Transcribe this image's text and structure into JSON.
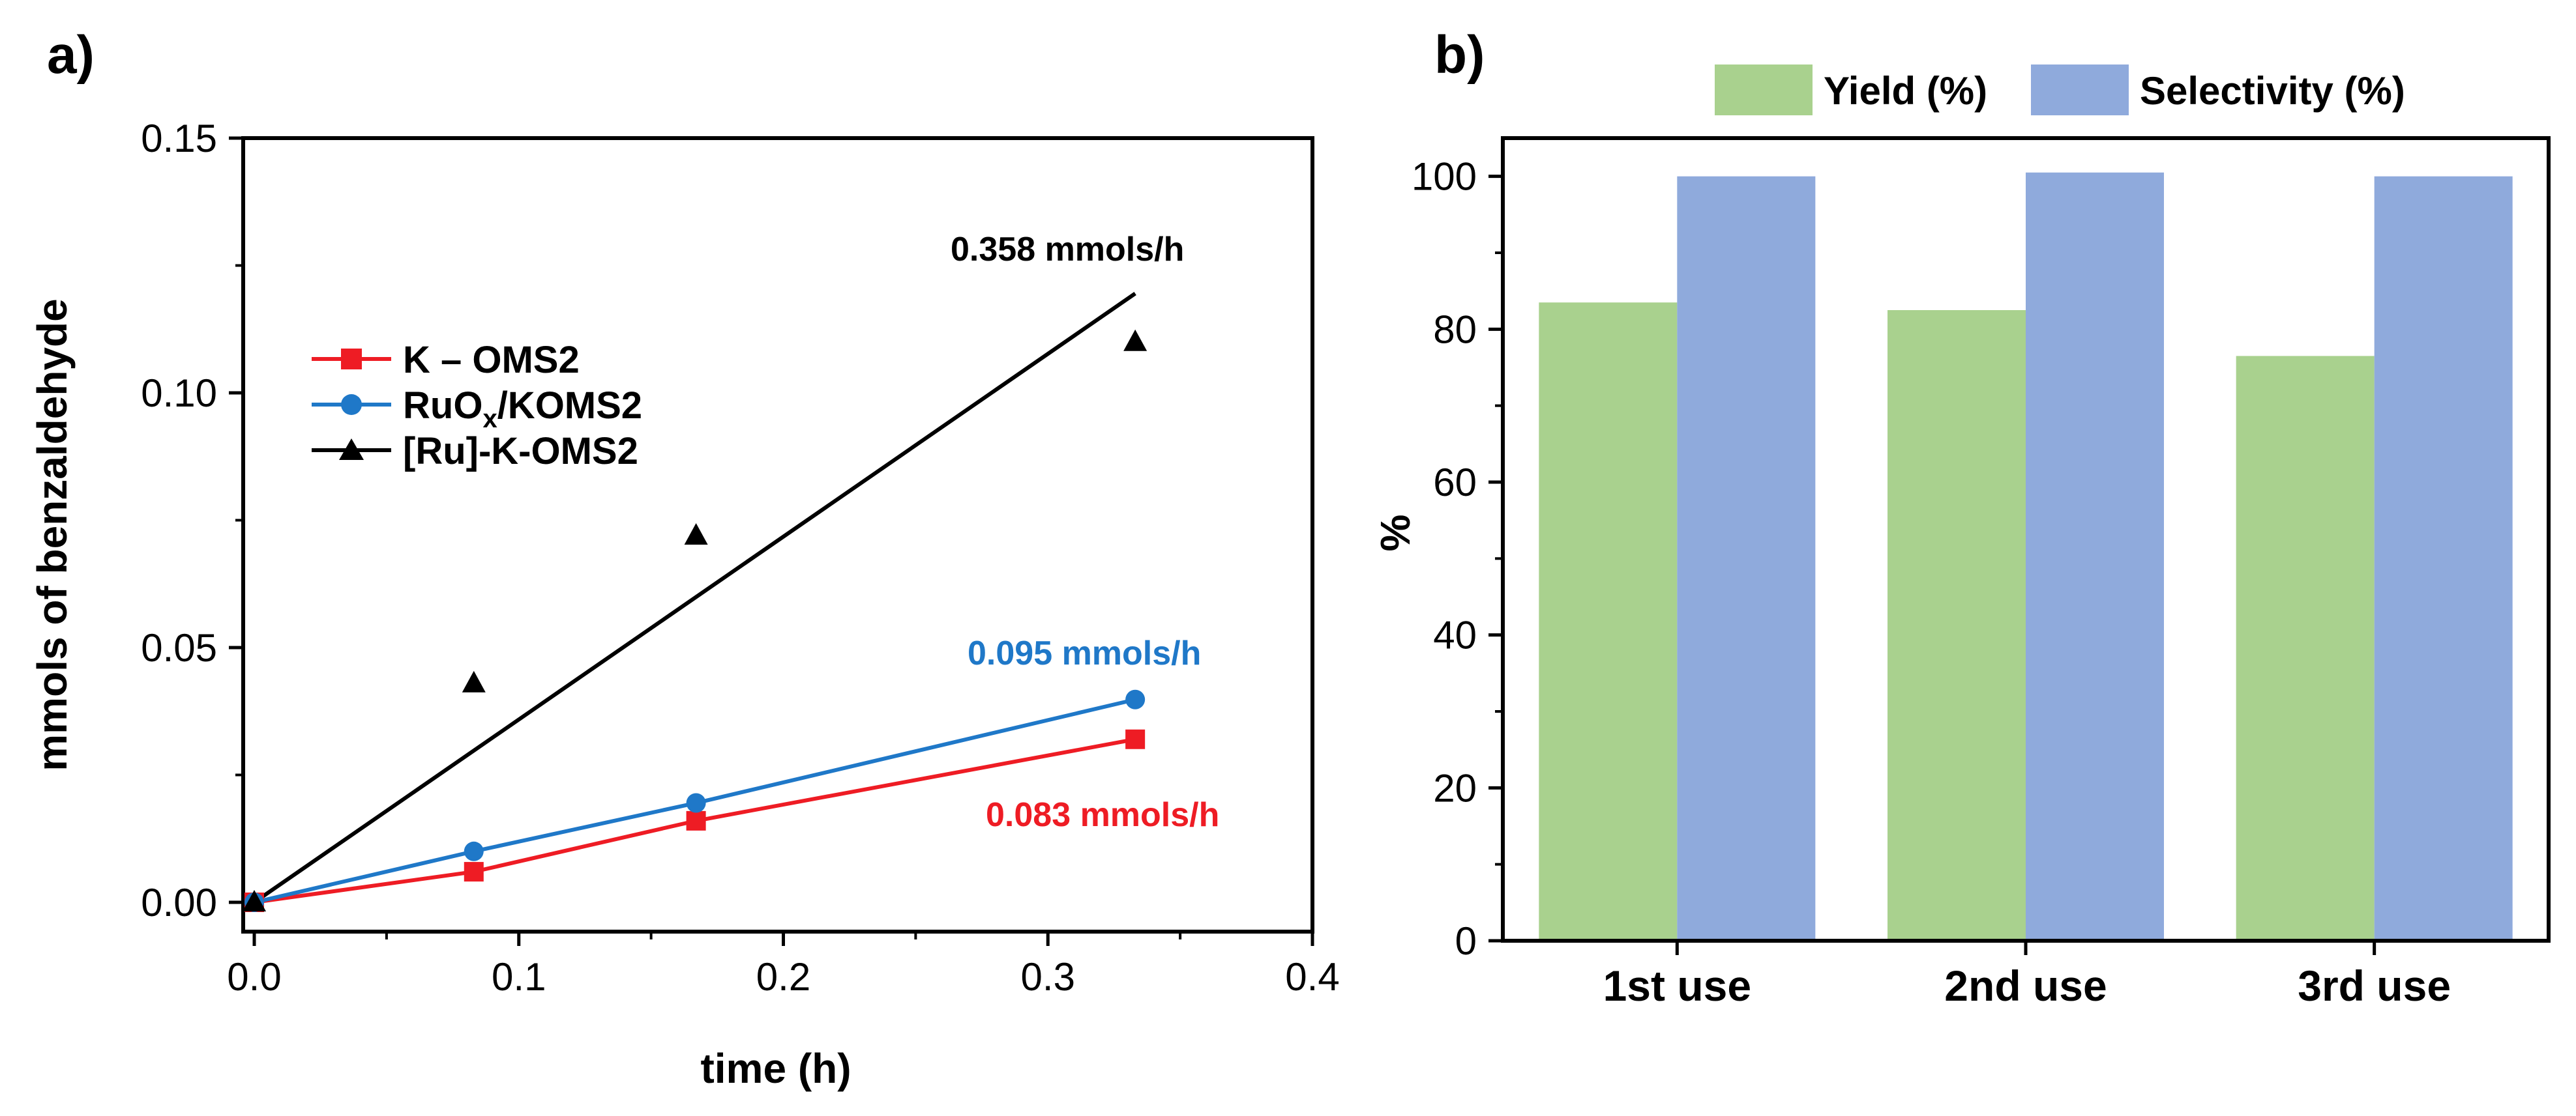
{
  "figure": {
    "panel_a_label": "a)",
    "panel_b_label": "b)"
  },
  "chart_data": [
    {
      "type": "line",
      "panel": "a)",
      "title": "",
      "xlabel": "time (h)",
      "ylabel": "mmols of benzaldehyde",
      "xlim": [
        0,
        0.4
      ],
      "ylim": [
        0,
        0.15
      ],
      "xticks": [
        "0.0",
        "0.1",
        "0.2",
        "0.3",
        "0.4"
      ],
      "yticks": [
        "0.00",
        "0.05",
        "0.10",
        "0.15"
      ],
      "legend_position": "upper-left",
      "series": [
        {
          "name": "K – OMS2",
          "color": "#ee1c24",
          "marker": "square",
          "connected": true,
          "x": [
            0,
            0.083,
            0.167,
            0.333
          ],
          "y": [
            0.0,
            0.006,
            0.016,
            0.032
          ]
        },
        {
          "name": "RuOx/KOMS2",
          "name_parts": [
            "RuO",
            "x",
            "/KOMS2"
          ],
          "color": "#1f78c8",
          "marker": "circle",
          "connected": true,
          "x": [
            0,
            0.083,
            0.167,
            0.333
          ],
          "y": [
            0.0,
            0.01,
            0.0195,
            0.0398
          ]
        },
        {
          "name": "[Ru]-K-OMS2",
          "color": "#000000",
          "marker": "triangle",
          "connected": false,
          "fit_line": {
            "x": [
              0,
              0.333
            ],
            "y": [
              0,
              0.1195
            ]
          },
          "x": [
            0,
            0.083,
            0.167,
            0.333
          ],
          "y": [
            0.0,
            0.043,
            0.072,
            0.11
          ]
        }
      ],
      "annotations": [
        {
          "text": "0.358 mmols/h",
          "color": "#000000",
          "series": "[Ru]-K-OMS2"
        },
        {
          "text": "0.095 mmols/h",
          "color": "#1f78c8",
          "series": "RuOx/KOMS2"
        },
        {
          "text": "0.083 mmols/h",
          "color": "#ee1c24",
          "series": "K – OMS2"
        }
      ]
    },
    {
      "type": "bar",
      "panel": "b)",
      "title": "",
      "xlabel": "",
      "ylabel": "%",
      "ylim": [
        0,
        105
      ],
      "yticks": [
        "0",
        "20",
        "40",
        "60",
        "80",
        "100"
      ],
      "categories": [
        "1st use",
        "2nd use",
        "3rd use"
      ],
      "legend_position": "top",
      "series": [
        {
          "name": "Yield (%)",
          "color": "#a9d18e",
          "values": [
            83.5,
            82.5,
            76.5
          ]
        },
        {
          "name": "Selectivity (%)",
          "color": "#8faadc",
          "values": [
            100,
            100.5,
            100
          ]
        }
      ]
    }
  ]
}
